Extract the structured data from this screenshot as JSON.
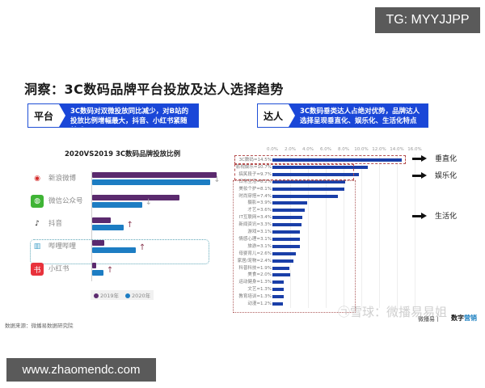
{
  "badges": {
    "tg": "TG: MYYJJPP",
    "url": "www.zhaomendc.com"
  },
  "page": {
    "title": "洞察：3C数码品牌平台投放及达人选择趋势",
    "source": "数据来源：微播易数据研究院"
  },
  "insights": {
    "platform": {
      "tag": "平台",
      "message": "3C数码对双微投放同比减少，对B站的投放比例增幅最大，抖音、小红书紧随其后"
    },
    "kol": {
      "tag": "达人",
      "message": "3C数码垂类达人占绝对优势，品牌达人选择呈现垂直化、娱乐化、生活化特点"
    }
  },
  "colors": {
    "accent_blue": "#1a47d8",
    "series_2019": "#5b2a6e",
    "series_2020": "#1d7dc3",
    "kol_bar": "#1a3fa8",
    "highlight_box": "#5fa7b8",
    "group_box": "#b55050"
  },
  "watermark": {
    "text": "㉠雪球：微播易易姐",
    "logo_a": "微播易丨",
    "logo_b_prefix": "数字",
    "logo_b_suffix": "营销"
  },
  "chart_data": [
    {
      "type": "bar",
      "orientation": "horizontal",
      "title": "2020VS2019 3C数码品牌投放比例",
      "categories": [
        "新浪微博",
        "微信公众号",
        "抖音",
        "哔哩哔哩",
        "小红书"
      ],
      "series": [
        {
          "name": "2019年",
          "values": [
            100,
            70,
            15,
            10,
            3
          ]
        },
        {
          "name": "2020年",
          "values": [
            95,
            40,
            25,
            35,
            9
          ]
        }
      ],
      "trends": [
        "down",
        "down",
        "up",
        "up",
        "up"
      ],
      "highlighted_category": "哔哩哔哩",
      "value_units": "relative bar length (no axis shown)",
      "legend": [
        "2019年",
        "2020年"
      ],
      "legend_position": "bottom",
      "grid": false
    },
    {
      "type": "bar",
      "orientation": "horizontal",
      "title": "",
      "xlabel": "",
      "ylabel": "",
      "xlim": [
        0,
        16
      ],
      "x_ticks": [
        "0.0%",
        "2.0%",
        "4.0%",
        "6.0%",
        "8.0%",
        "10.0%",
        "12.0%",
        "14.0%",
        "16.0%"
      ],
      "categories": [
        "3C数码",
        "影视娱乐",
        "搞笑段子",
        "日常生活",
        "美妆个护",
        "时尚穿搭",
        "摄影",
        "才艺",
        "IT互联网",
        "新闻资讯",
        "游戏",
        "情感心理",
        "旅游",
        "母婴育儿",
        "家居/宠物",
        "科普科技",
        "美食",
        "运动健身",
        "文艺",
        "教育培训",
        "动漫"
      ],
      "labels": [
        "3C数码=14.5%",
        "影视娱乐=10.7%",
        "搞笑段子=9.7%",
        "日常生活=8.2%",
        "美妆个护=8.1%",
        "时尚穿搭=7.4%",
        "摄影=3.9%",
        "才艺=3.6%",
        "IT互联网=3.4%",
        "新闻资讯=3.3%",
        "游戏=3.1%",
        "情感心理=3.1%",
        "旅游=3.1%",
        "母婴育儿=2.6%",
        "家居/宠物=2.4%",
        "科普科技=1.9%",
        "美食=2.0%",
        "运动健身=1.3%",
        "文艺=1.3%",
        "教育培训=1.3%",
        "动漫=1.2%"
      ],
      "values": [
        14.5,
        10.7,
        9.7,
        8.2,
        8.1,
        7.4,
        3.9,
        3.6,
        3.4,
        3.3,
        3.1,
        3.1,
        3.1,
        2.6,
        2.4,
        1.9,
        2.0,
        1.3,
        1.3,
        1.3,
        1.2
      ],
      "groups": [
        {
          "label": "垂直化",
          "categories": [
            "3C数码"
          ]
        },
        {
          "label": "娱乐化",
          "categories": [
            "影视娱乐",
            "搞笑段子"
          ]
        },
        {
          "label": "生活化",
          "categories": [
            "日常生活",
            "美妆个护",
            "时尚穿搭",
            "摄影",
            "才艺",
            "IT互联网",
            "新闻资讯",
            "游戏",
            "情感心理",
            "旅游",
            "母婴育儿",
            "家居/宠物",
            "科普科技",
            "美食",
            "运动健身",
            "文艺",
            "教育培训",
            "动漫"
          ]
        }
      ],
      "grid": true
    }
  ]
}
